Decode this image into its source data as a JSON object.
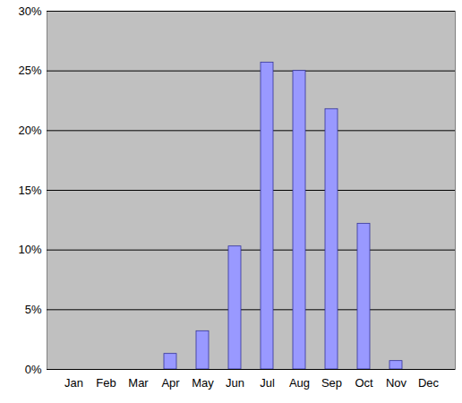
{
  "chart_data": {
    "type": "bar",
    "categories": [
      "Jan",
      "Feb",
      "Mar",
      "Apr",
      "May",
      "Jun",
      "Jul",
      "Aug",
      "Sep",
      "Oct",
      "Nov",
      "Dec"
    ],
    "values": [
      0,
      0,
      0,
      1.3,
      3.2,
      10.3,
      25.7,
      25.0,
      21.8,
      12.2,
      0.7,
      0
    ],
    "color": "#9999ff",
    "ylim": [
      0,
      30
    ],
    "yticks": [
      {
        "value": 0,
        "label": "0%"
      },
      {
        "value": 5,
        "label": "5%"
      },
      {
        "value": 10,
        "label": "10%"
      },
      {
        "value": 15,
        "label": "15%"
      },
      {
        "value": 20,
        "label": "20%"
      },
      {
        "value": 25,
        "label": "25%"
      },
      {
        "value": 30,
        "label": "30%"
      }
    ],
    "grid": true
  }
}
